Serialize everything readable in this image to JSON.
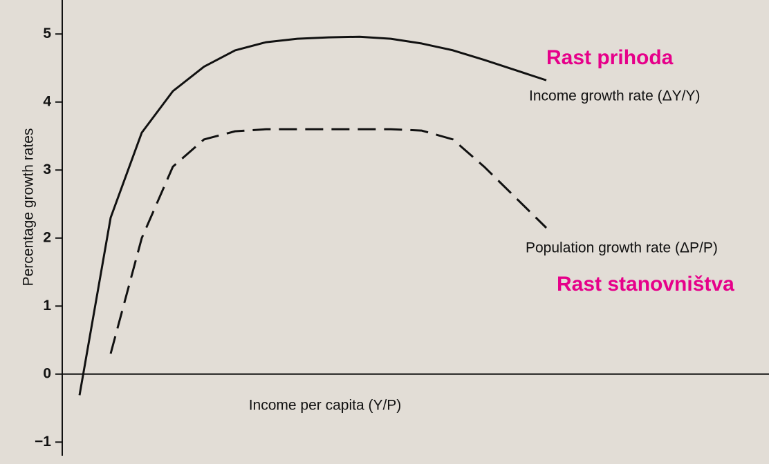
{
  "chart_data": {
    "type": "line",
    "y_label": "Percentage growth rates",
    "x_label": "Income per capita (Y/P)",
    "annotations": [
      "Rast prihoda",
      "Income growth rate (ΔY/Y)",
      "Population growth rate (ΔP/P)",
      "Rast stanovništva"
    ],
    "categories": [
      null,
      null,
      null,
      null,
      null,
      null,
      null,
      null,
      null,
      null,
      null,
      null,
      null,
      null,
      null,
      null
    ],
    "series": [
      {
        "name": "Income growth rate",
        "color": "#111111",
        "dash": false,
        "values": [
          -0.31,
          2.3,
          3.55,
          4.16,
          4.52,
          4.76,
          4.88,
          4.93,
          4.95,
          4.96,
          4.93,
          4.86,
          4.76,
          4.62,
          4.47,
          4.32
        ]
      },
      {
        "name": "Population growth rate",
        "color": "#111111",
        "dash": true,
        "values": [
          null,
          0.3,
          2.0,
          3.05,
          3.45,
          3.57,
          3.6,
          3.6,
          3.6,
          3.6,
          3.6,
          3.58,
          3.45,
          3.05,
          2.6,
          2.15
        ]
      }
    ],
    "ylim": [
      -1.2,
      5.5
    ],
    "yticks": [
      {
        "value": -1,
        "label": "−1"
      },
      0,
      1,
      2,
      3,
      4,
      5
    ]
  }
}
